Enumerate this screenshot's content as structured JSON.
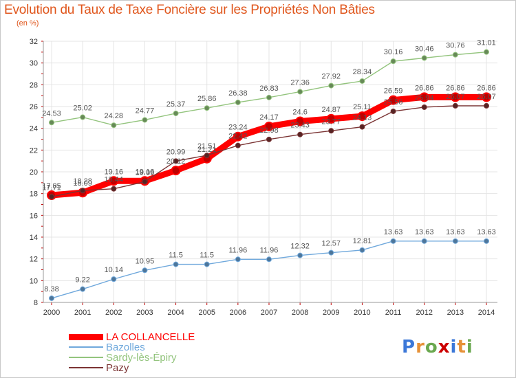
{
  "header": {
    "title": "Evolution du Taux de Taxe Foncière sur les Propriétés Non Bâties",
    "unit": "(en %)"
  },
  "chart_data": {
    "type": "line",
    "x": [
      2000,
      2001,
      2002,
      2003,
      2004,
      2005,
      2006,
      2007,
      2008,
      2009,
      2010,
      2011,
      2012,
      2013,
      2014
    ],
    "ylim": [
      8,
      32
    ],
    "yticks": [
      8,
      10,
      12,
      14,
      16,
      18,
      20,
      22,
      24,
      26,
      28,
      30,
      32
    ],
    "grid": true,
    "legend_position": "bottom-left",
    "series": [
      {
        "name": "LA COLLANCELLE",
        "color": "#ff0000",
        "values": [
          17.85,
          18.09,
          19.16,
          19.16,
          20.12,
          21.21,
          23.24,
          24.17,
          24.64,
          24.87,
          25.11,
          26.59,
          26.86,
          26.86,
          26.86
        ],
        "labels": [
          "17.85",
          "18.09",
          "19.16",
          "19.16",
          "20.12",
          "21.21",
          "23.24",
          "24.17",
          "24.6",
          "24.87",
          "25.11",
          "26.59",
          "26.86",
          "26.86",
          "26.86"
        ]
      },
      {
        "name": "Bazolles",
        "color": "#6fa8dc",
        "values": [
          8.38,
          9.22,
          10.14,
          10.95,
          11.5,
          11.5,
          11.96,
          11.96,
          12.32,
          12.57,
          12.81,
          13.63,
          13.63,
          13.63,
          13.63
        ],
        "labels": [
          "8.38",
          "9.22",
          "10.14",
          "10.95",
          "11.5",
          "11.5",
          "11.96",
          "11.96",
          "12.32",
          "12.57",
          "12.81",
          "13.63",
          "13.63",
          "13.63",
          "13.63"
        ]
      },
      {
        "name": "Sardy-lès-Épiry",
        "color": "#93c47d",
        "values": [
          24.53,
          25.02,
          24.28,
          24.77,
          25.37,
          25.86,
          26.38,
          26.83,
          27.36,
          27.92,
          28.34,
          30.16,
          30.46,
          30.76,
          31.01
        ],
        "labels": [
          "24.53",
          "25.02",
          "24.28",
          "24.77",
          "25.37",
          "25.86",
          "26.38",
          "26.83",
          "27.36",
          "27.92",
          "28.34",
          "30.16",
          "30.46",
          "30.76",
          "31.01"
        ]
      },
      {
        "name": "Pazy",
        "color": "#7b3434",
        "values": [
          17.71,
          18.28,
          18.44,
          19.09,
          20.99,
          21.51,
          22.42,
          22.98,
          23.43,
          23.77,
          24.13,
          25.56,
          25.94,
          26.07,
          26.07
        ],
        "labels": [
          "17.71",
          "18.28",
          "18.44",
          "19.09",
          "20.99",
          "21.51",
          "22.42",
          "22.98",
          "23.43",
          "23.77",
          "24.13",
          "25.56",
          "25.94",
          "26.07",
          "26.07"
        ]
      }
    ]
  },
  "logo": {
    "letters": [
      "P",
      "r",
      "o",
      "x",
      "i",
      "t",
      "i"
    ],
    "colors": [
      "#3c78d8",
      "#e69138",
      "#6aa84f",
      "#cc0000",
      "#3c78d8",
      "#e69138",
      "#6aa84f"
    ]
  }
}
